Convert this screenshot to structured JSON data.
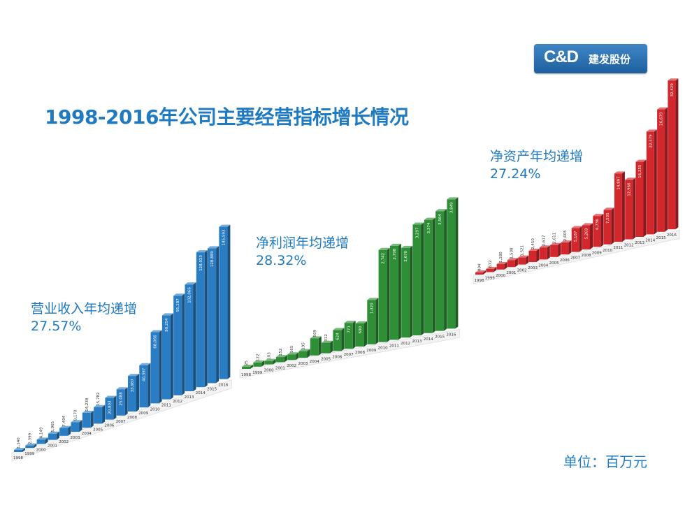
{
  "logo": {
    "mark": "C&D",
    "text": "建发股份"
  },
  "main_title": "1998-2016年公司主要经营指标增长情况",
  "unit_label": "单位：百万元",
  "colors": {
    "title": "#1f7ac2",
    "revenue": "#2a7dc2",
    "profit": "#2f8f37",
    "equity": "#d2272c"
  },
  "chart_data": [
    {
      "type": "bar",
      "id": "revenue",
      "title": "营业收入年均递增",
      "growth": "27.57%",
      "color": "#2a7dc2",
      "categories": [
        "1998",
        "1999",
        "2000",
        "2001",
        "2002",
        "2003",
        "2004",
        "2005",
        "2006",
        "2007",
        "2008",
        "2009",
        "2010",
        "2011",
        "2012",
        "2013",
        "2014",
        "2015",
        "2016"
      ],
      "values": [
        1140,
        2399,
        4149,
        5965,
        7494,
        9170,
        14238,
        15782,
        20803,
        25088,
        33987,
        40397,
        68066,
        80254,
        95187,
        102066,
        128923,
        128889,
        145593
      ],
      "labels": [
        "1,140",
        "2,399",
        "4,149",
        "5,965",
        "7,494",
        "9,170",
        "14,238",
        "15,782",
        "20,803",
        "25,088",
        "33,987",
        "40,397",
        "68,066",
        "80,254",
        "95,187",
        "102,066",
        "128,923",
        "128,889",
        "145,593"
      ]
    },
    {
      "type": "bar",
      "id": "profit",
      "title": "净利润年均递增",
      "growth": "28.32%",
      "color": "#2f8f37",
      "categories": [
        "1998",
        "1999",
        "2000",
        "2001",
        "2002",
        "2003",
        "2004",
        "2005",
        "2006",
        "2007",
        "2008",
        "2009",
        "2010",
        "2011",
        "2012",
        "2013",
        "2014",
        "2015",
        "2016"
      ],
      "values": [
        25,
        122,
        103,
        152,
        165,
        195,
        509,
        312,
        624,
        771,
        690,
        1320,
        2742,
        2798,
        2670,
        3297,
        3374,
        3564,
        3849
      ],
      "labels": [
        "25",
        "122",
        "103",
        "152",
        "165",
        "195",
        "509",
        "312",
        "624",
        "771",
        "690",
        "1,320",
        "2,742",
        "2,798",
        "2,670",
        "3,297",
        "3,374",
        "3,564",
        "3,849"
      ]
    },
    {
      "type": "bar",
      "id": "equity",
      "title": "净资产年均递增",
      "growth": "27.24%",
      "color": "#d2272c",
      "categories": [
        "1998",
        "1999",
        "2000",
        "2001",
        "2002",
        "2003",
        "2004",
        "2005",
        "2006",
        "2007",
        "2008",
        "2009",
        "2010",
        "2011",
        "2012",
        "2013",
        "2014",
        "2015",
        "2016"
      ],
      "values": [
        404,
        672,
        1180,
        1508,
        1521,
        2450,
        2617,
        2611,
        2605,
        5187,
        5269,
        6736,
        7535,
        14897,
        12966,
        16355,
        22379,
        26679,
        32429
      ],
      "labels": [
        "404",
        "672",
        "1,180",
        "1,508",
        "1,521",
        "2,450",
        "2,617",
        "2,611",
        "2,605",
        "5,187",
        "5,269",
        "6,736",
        "7,535",
        "14,897",
        "12,966",
        "16,355",
        "22,379",
        "26,679",
        "32,429"
      ]
    }
  ]
}
